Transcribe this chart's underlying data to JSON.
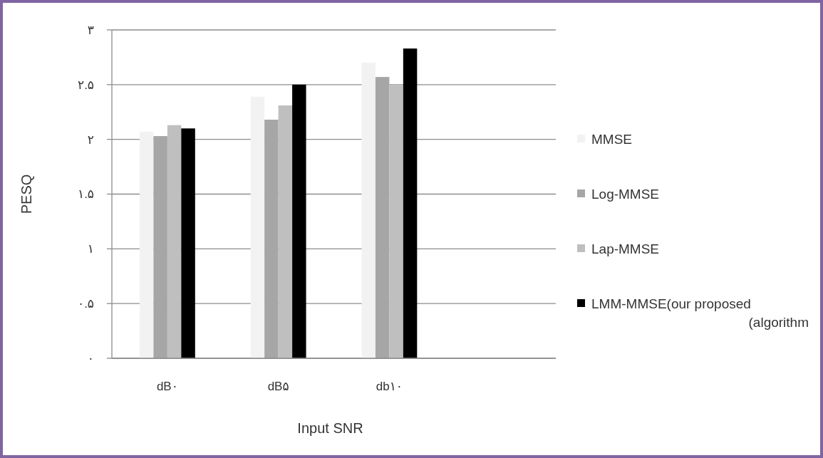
{
  "chart_data": {
    "type": "bar",
    "xlabel": "Input SNR",
    "ylabel": "PESQ",
    "categories": [
      "dB۰",
      "dB۵",
      "db۱۰",
      null
    ],
    "series": [
      {
        "name": "MMSE",
        "color": "#f2f2f2",
        "values": [
          2.07,
          2.39,
          2.7,
          null
        ]
      },
      {
        "name": "Log-MMSE",
        "color": "#a6a6a6",
        "values": [
          2.03,
          2.18,
          2.57,
          null
        ]
      },
      {
        "name": "Lap-MMSE",
        "color": "#bfbfbf",
        "values": [
          2.13,
          2.31,
          2.5,
          null
        ]
      },
      {
        "name": "LMM-MMSE(our proposed\n(algorithm",
        "color": "#000000",
        "values": [
          2.1,
          2.5,
          2.83,
          null
        ]
      }
    ],
    "ylim": [
      0,
      3
    ],
    "yticks": [
      {
        "value": 0,
        "label": "۰"
      },
      {
        "value": 0.5,
        "label": "۰.۵"
      },
      {
        "value": 1,
        "label": "۱"
      },
      {
        "value": 1.5,
        "label": "۱.۵"
      },
      {
        "value": 2,
        "label": "۲"
      },
      {
        "value": 2.5,
        "label": "۲.۵"
      },
      {
        "value": 3,
        "label": "۳"
      }
    ],
    "grid": "y",
    "legend": "right"
  }
}
